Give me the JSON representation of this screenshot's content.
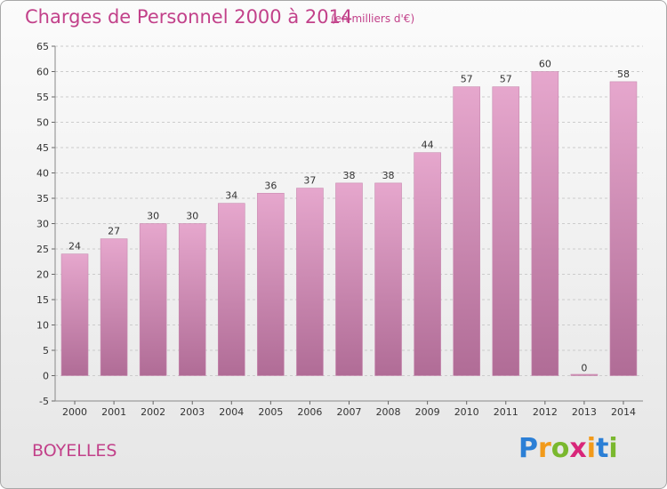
{
  "chart_data": {
    "type": "bar",
    "title": "Charges de Personnel 2000 à 2014",
    "subtitle": "(en milliers d'€)",
    "categories": [
      "2000",
      "2001",
      "2002",
      "2003",
      "2004",
      "2005",
      "2006",
      "2007",
      "2008",
      "2009",
      "2010",
      "2011",
      "2012",
      "2013",
      "2014"
    ],
    "values": [
      24,
      27,
      30,
      30,
      34,
      36,
      37,
      38,
      38,
      44,
      57,
      57,
      60,
      0,
      58
    ],
    "ylim": [
      -5,
      65
    ],
    "yticks": [
      -5,
      0,
      5,
      10,
      15,
      20,
      25,
      30,
      35,
      40,
      45,
      50,
      55,
      60,
      65
    ],
    "grid": true,
    "legend": "none",
    "colors": {
      "bar_top": "#e6a7cd",
      "bar_bottom": "#b06c96",
      "grid": "#cccccc",
      "text": "#c2418a"
    }
  },
  "footer": {
    "location": "BOYELLES",
    "brand_letters": [
      "P",
      "r",
      "o",
      "x",
      "i",
      "t",
      "i"
    ],
    "brand_colors": [
      "#2b7fd6",
      "#f29a1a",
      "#7ab82e",
      "#d8267a",
      "#f29a1a",
      "#2b7fd6",
      "#7ab82e"
    ]
  }
}
